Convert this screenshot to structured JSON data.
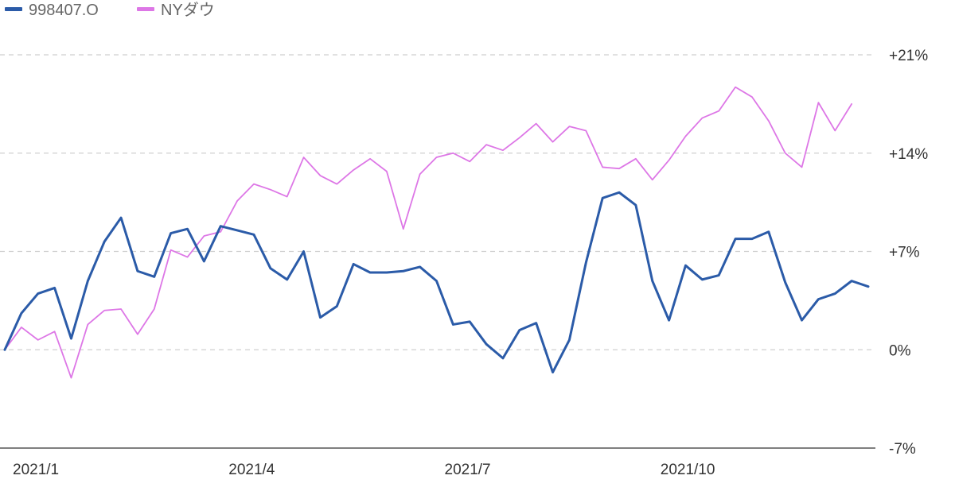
{
  "chart_data": {
    "type": "line",
    "title": "",
    "xlabel": "",
    "ylabel": "",
    "legend_position": "top-left",
    "grid": true,
    "x_tick_labels": [
      "2021/1",
      "2021/4",
      "2021/7",
      "2021/10"
    ],
    "x_tick_indices": [
      0,
      13,
      26,
      39
    ],
    "y_ticks": [
      {
        "value": 21,
        "label": "+21%"
      },
      {
        "value": 14,
        "label": "+14%"
      },
      {
        "value": 7,
        "label": "+7%"
      },
      {
        "value": 0,
        "label": "0%"
      },
      {
        "value": -7,
        "label": "-7%"
      }
    ],
    "ylim": [
      -7,
      22
    ],
    "x_count": 53,
    "series": [
      {
        "name": "998407.O",
        "color": "#2b5ba8",
        "values": [
          0.0,
          2.6,
          4.0,
          4.4,
          0.8,
          4.9,
          7.7,
          9.4,
          5.6,
          5.2,
          8.3,
          8.6,
          6.3,
          8.8,
          8.5,
          8.2,
          5.8,
          5.0,
          7.0,
          2.3,
          3.1,
          6.1,
          5.5,
          5.5,
          5.6,
          5.9,
          4.9,
          1.8,
          2.0,
          0.4,
          -0.6,
          1.4,
          1.9,
          -1.6,
          0.7,
          6.2,
          10.8,
          11.2,
          10.3,
          4.9,
          2.1,
          6.0,
          5.0,
          5.3,
          7.9,
          7.9,
          8.4,
          4.8,
          2.1,
          3.6,
          4.0,
          4.9,
          4.5
        ]
      },
      {
        "name": "NYダウ",
        "color": "#dd77e6",
        "values": [
          0.0,
          1.6,
          0.7,
          1.3,
          -2.0,
          1.8,
          2.8,
          2.9,
          1.1,
          2.9,
          7.1,
          6.6,
          8.1,
          8.4,
          10.6,
          11.8,
          11.4,
          10.9,
          13.7,
          12.4,
          11.8,
          12.8,
          13.6,
          12.7,
          8.6,
          12.5,
          13.7,
          14.0,
          13.4,
          14.6,
          14.2,
          15.1,
          16.1,
          14.8,
          15.9,
          15.6,
          13.0,
          12.9,
          13.6,
          12.1,
          13.5,
          15.2,
          16.5,
          17.0,
          18.7,
          18.0,
          16.3,
          14.0,
          13.0,
          17.6,
          15.6,
          17.5,
          null
        ]
      }
    ]
  }
}
